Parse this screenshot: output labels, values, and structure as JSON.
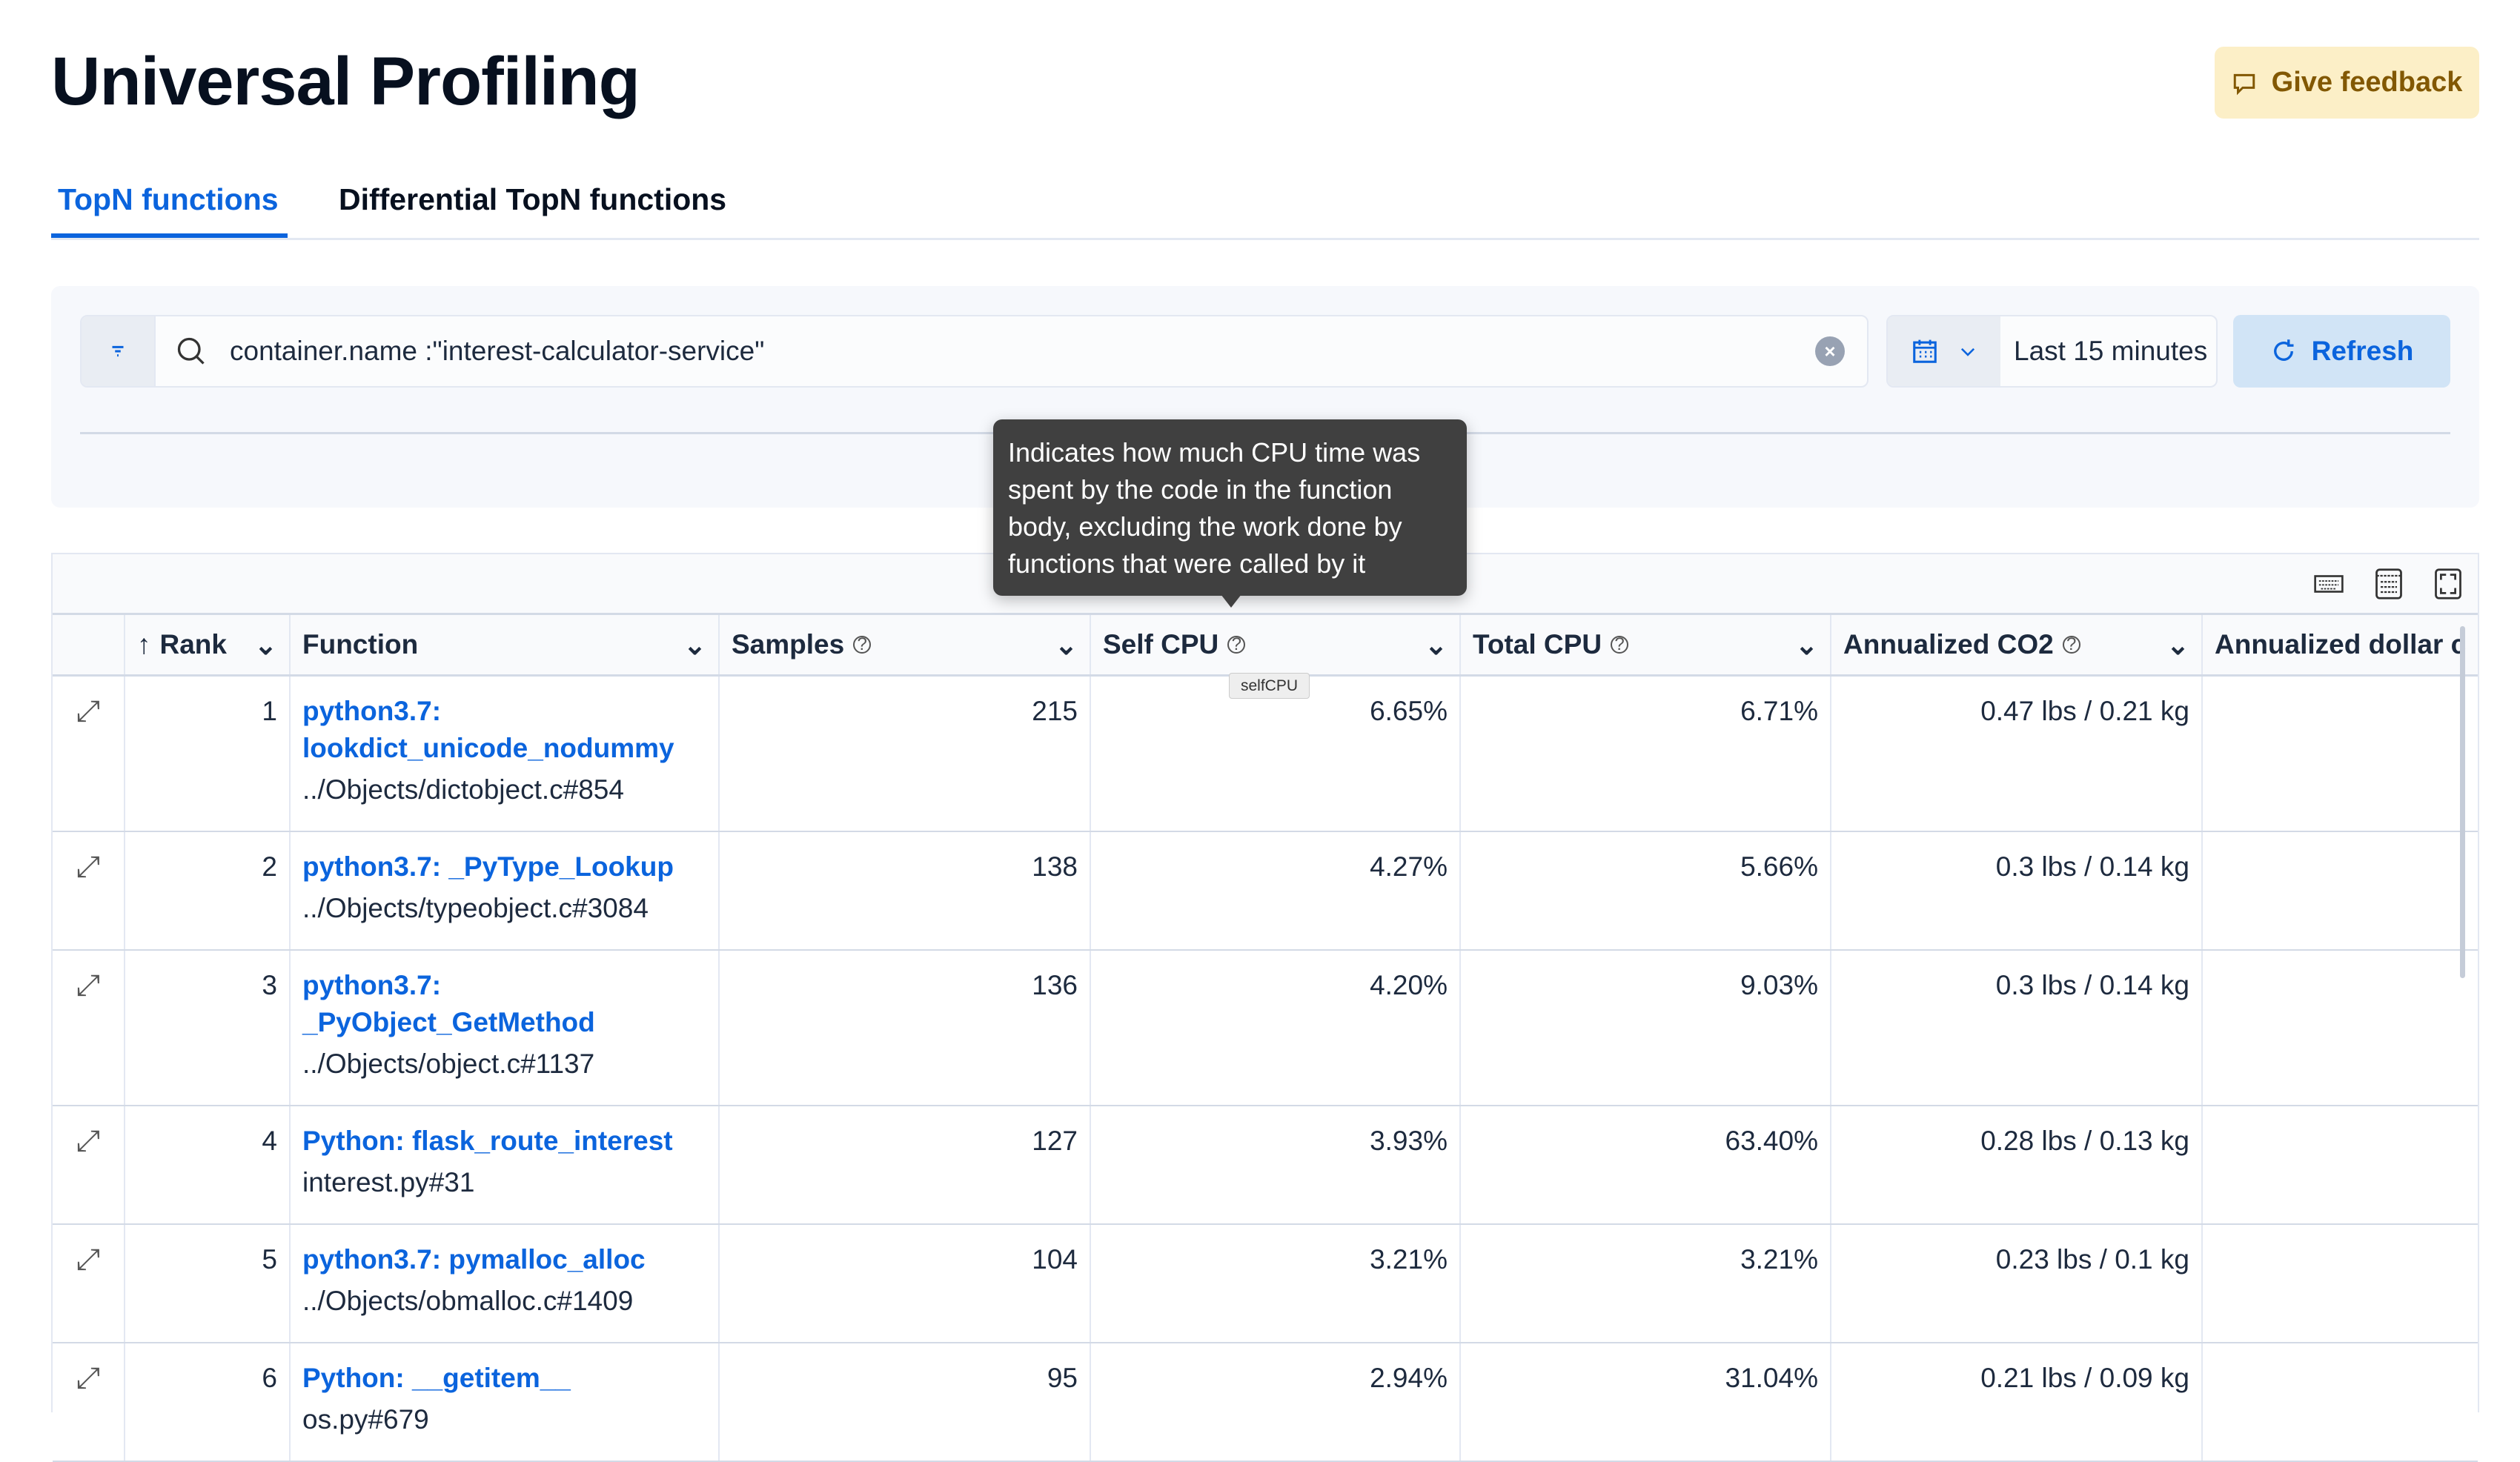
{
  "page": {
    "title": "Universal Profiling",
    "feedback_label": "Give feedback"
  },
  "tabs": [
    {
      "label": "TopN functions",
      "active": true
    },
    {
      "label": "Differential TopN functions",
      "active": false
    }
  ],
  "search": {
    "query": "container.name :\"interest-calculator-service\""
  },
  "date": {
    "range": "Last 15 minutes"
  },
  "refresh_label": "Refresh",
  "tooltip": {
    "text": "Indicates how much CPU time was spent by the code in the function body, excluding the work done by functions that were called by it",
    "mini": "selfCPU"
  },
  "table": {
    "columns": [
      "Rank",
      "Function",
      "Samples",
      "Self CPU",
      "Total CPU",
      "Annualized CO2",
      "Annualized dollar c"
    ],
    "rows": [
      {
        "rank": "1",
        "function": "python3.7: lookdict_unicode_nodummy",
        "source": "../Objects/dictobject.c#854",
        "samples": "215",
        "self_cpu": "6.65%",
        "total_cpu": "6.71%",
        "co2": "0.47 lbs / 0.21 kg"
      },
      {
        "rank": "2",
        "function": "python3.7: _PyType_Lookup",
        "source": "../Objects/typeobject.c#3084",
        "samples": "138",
        "self_cpu": "4.27%",
        "total_cpu": "5.66%",
        "co2": "0.3 lbs / 0.14 kg"
      },
      {
        "rank": "3",
        "function": "python3.7: _PyObject_GetMethod",
        "source": "../Objects/object.c#1137",
        "samples": "136",
        "self_cpu": "4.20%",
        "total_cpu": "9.03%",
        "co2": "0.3 lbs / 0.14 kg"
      },
      {
        "rank": "4",
        "function": "Python: flask_route_interest",
        "source": "interest.py#31",
        "samples": "127",
        "self_cpu": "3.93%",
        "total_cpu": "63.40%",
        "co2": "0.28 lbs / 0.13 kg"
      },
      {
        "rank": "5",
        "function": "python3.7: pymalloc_alloc",
        "source": "../Objects/obmalloc.c#1409",
        "samples": "104",
        "self_cpu": "3.21%",
        "total_cpu": "3.21%",
        "co2": "0.23 lbs / 0.1 kg"
      },
      {
        "rank": "6",
        "function": "Python: __getitem__",
        "source": "os.py#679",
        "samples": "95",
        "self_cpu": "2.94%",
        "total_cpu": "31.04%",
        "co2": "0.21 lbs / 0.09 kg"
      }
    ]
  },
  "colors": {
    "accent": "#0b64dd",
    "feedback_bg": "#fcefc7",
    "feedback_text": "#825803",
    "tooltip_bg": "#404040"
  }
}
